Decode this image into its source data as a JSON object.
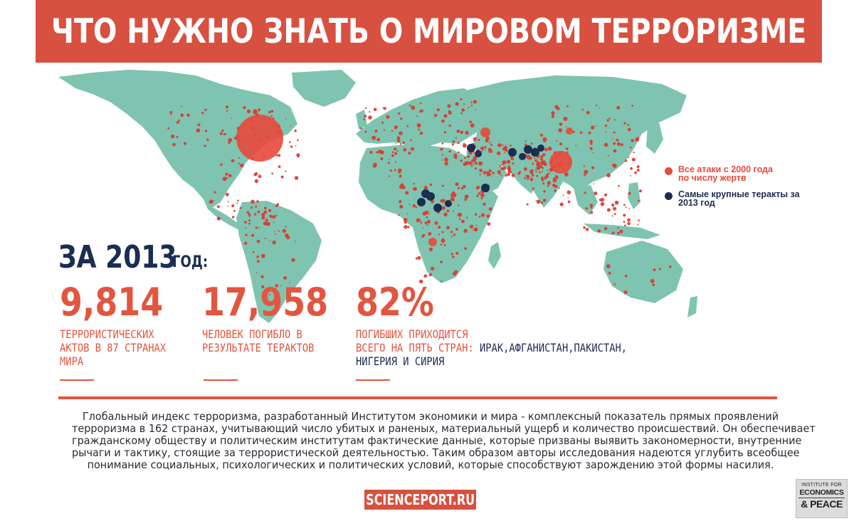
{
  "header": {
    "title": "ЧТО НУЖНО ЗНАТЬ О МИРОВОМ ТЕРРОРИЗМЕ"
  },
  "colors": {
    "banner": "#d8503f",
    "land": "#7fc4b0",
    "attack_dot": "#e0342a",
    "major_attack_dot": "#1b2d52",
    "accent_text": "#e2553f",
    "dark_text": "#1b2d52"
  },
  "legend": {
    "items": [
      {
        "label_line1": "Все атаки с 2000 года",
        "label_line2": "по числу жертв",
        "color": "#e8493c",
        "text_color": "#e8493c"
      },
      {
        "label_line1": "Самые крупные теракты за",
        "label_line2": "2013 год",
        "color": "#1b2d52",
        "text_color": "#1b2d52"
      }
    ]
  },
  "year_block": {
    "main": "ЗА 2013",
    "suffix": "ГОД:"
  },
  "stats": [
    {
      "number": "9,814",
      "line1": "ТЕРРОРИСТИЧЕСКИХ",
      "line2": "АКТОВ В 87 СТРАНАХ",
      "line3": "МИРА"
    },
    {
      "number": "17,958",
      "line1": "ЧЕЛОВЕК ПОГИБЛО В",
      "line2": "РЕЗУЛЬТАТЕ ТЕРАКТОВ"
    },
    {
      "number": "82%",
      "line1": "ПОГИБШИХ ПРИХОДИТСЯ",
      "line2_accent": "ВСЕГО НА ПЯТЬ СТРАН: ",
      "line2_dark": "ИРАК,АФГАНИСТАН,ПАКИСТАН,",
      "line3_dark": "НИГЕРИЯ И СИРИЯ"
    }
  ],
  "description": {
    "lines": [
      "Глобальный индекс терроризма, разработанный Институтом экономики и мира - комплексный показатель прямых проявлений",
      "терроризма в 162 странах, учитывающий число убитых и раненых, материальный ущерб и количество происшествий. Он обеспечивает",
      "гражданскому обществу и политическим институтам фактические данные, которые призваны выявить закономерности, внутренние",
      "рычаги и тактику, стоящие за террористической деятельностью. Таким образом авторы исследования надеются углубить всеобщее",
      "понимание социальных, психологических и политических условий, которые способствуют зарождению этой формы насилия."
    ]
  },
  "footer": {
    "site": "SCIENCEPORT.RU",
    "logo": {
      "line1": "INSTITUTE FOR",
      "line2": "ECONOMICS",
      "line3": "& PEACE"
    }
  },
  "map": {
    "major_attack_count": 13,
    "large_attack_bubbles": [
      "United States",
      "India",
      "Caucasus",
      "Nigeria"
    ]
  }
}
